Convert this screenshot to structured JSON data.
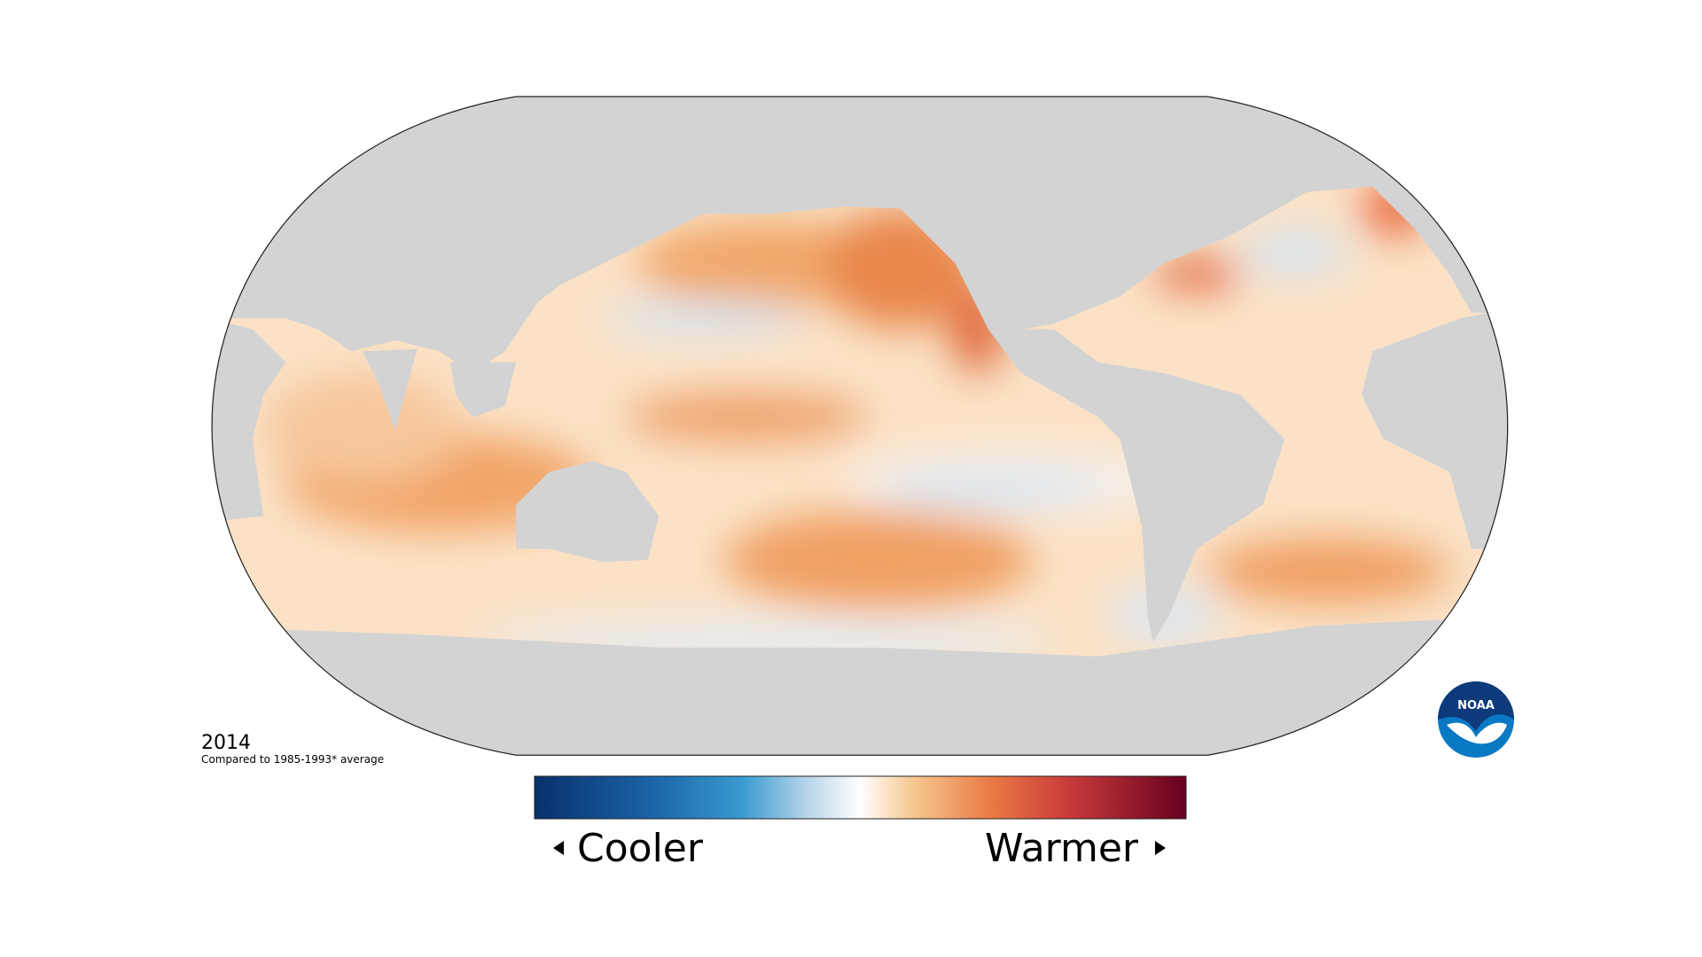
{
  "map": {
    "year": "2014",
    "caption": "Compared to 1985-1993* average",
    "legend": {
      "low": "Cooler",
      "high": "Warmer"
    },
    "logo": "NOAA"
  }
}
